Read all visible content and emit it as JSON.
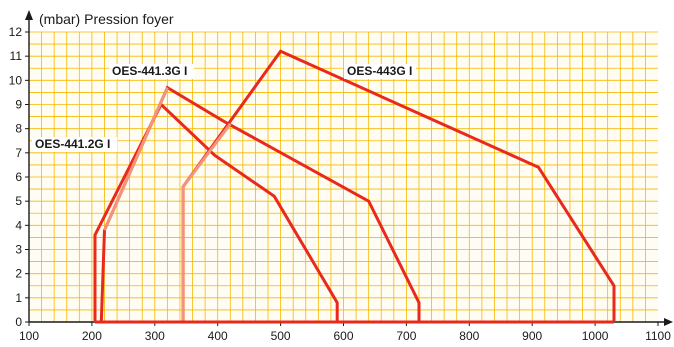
{
  "chart_data": {
    "type": "line",
    "ylabel": "(mbar) Pression foyer",
    "xlabel": "",
    "xlim": [
      100,
      1100
    ],
    "ylim": [
      0,
      12
    ],
    "x_ticks": [
      "100",
      "200",
      "300",
      "400",
      "500",
      "600",
      "700",
      "800",
      "900",
      "1000",
      "1100"
    ],
    "y_ticks": [
      "0",
      "1",
      "2",
      "3",
      "4",
      "5",
      "6",
      "7",
      "8",
      "9",
      "10",
      "11",
      "12"
    ],
    "grid": true,
    "colors": {
      "background": "#fffdf3",
      "grid": "#f5b800",
      "axis": "#1a1a1a",
      "series_main": "#e8291c",
      "series_light": "#f2937a"
    },
    "series": [
      {
        "name": "OES-441.2G I",
        "points": [
          [
            205,
            0
          ],
          [
            205,
            3.6
          ],
          [
            310,
            9.0
          ],
          [
            395,
            6.9
          ],
          [
            490,
            5.2
          ],
          [
            590,
            0.8
          ],
          [
            590,
            0
          ]
        ]
      },
      {
        "name": "OES-441.3G I",
        "points": [
          [
            215,
            0
          ],
          [
            220,
            3.8
          ],
          [
            320,
            9.7
          ],
          [
            410,
            8.3
          ],
          [
            640,
            5.0
          ],
          [
            720,
            0.8
          ],
          [
            720,
            0
          ]
        ]
      },
      {
        "name": "OES-443G I",
        "points": [
          [
            345,
            0
          ],
          [
            345,
            5.6
          ],
          [
            500,
            11.2
          ],
          [
            910,
            6.4
          ],
          [
            1030,
            1.5
          ],
          [
            1030,
            0
          ]
        ]
      }
    ],
    "light_segments": [
      {
        "series": "OES-441.3G I",
        "points": [
          [
            220,
            3.8
          ],
          [
            320,
            9.7
          ]
        ]
      },
      {
        "series": "OES-443G I",
        "points": [
          [
            345,
            0
          ],
          [
            345,
            5.6
          ],
          [
            420,
            8.2
          ]
        ]
      }
    ],
    "floor_line": {
      "points": [
        [
          205,
          0
        ],
        [
          1030,
          0
        ]
      ]
    }
  }
}
